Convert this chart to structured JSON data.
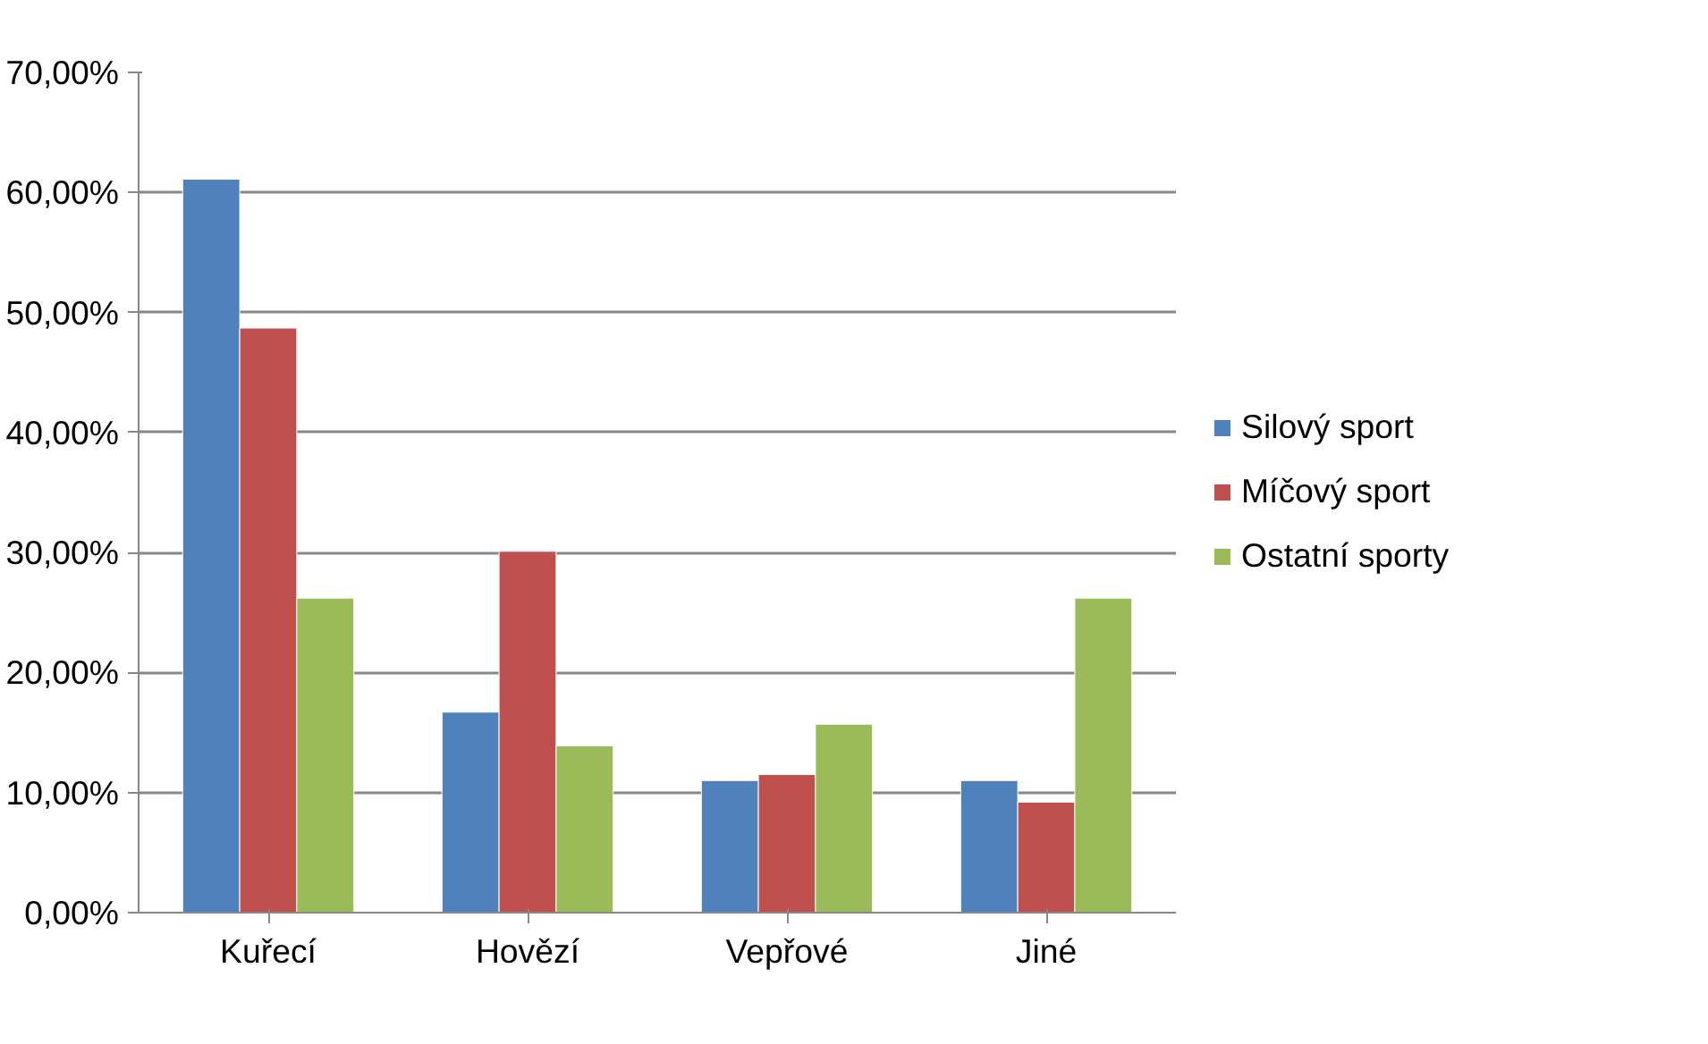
{
  "chart_data": {
    "type": "bar",
    "categories": [
      "Kuřecí",
      "Hovězí",
      "Vepřové",
      "Jiné"
    ],
    "series": [
      {
        "name": "Silový sport",
        "color": "#4f81bd",
        "values": [
          61.1,
          16.7,
          11.0,
          11.0
        ]
      },
      {
        "name": "Míčový sport",
        "color": "#c0504d",
        "values": [
          48.7,
          30.1,
          11.5,
          9.2
        ]
      },
      {
        "name": "Ostatní sporty",
        "color": "#9bbb59",
        "values": [
          26.2,
          13.9,
          15.7,
          26.2
        ]
      }
    ],
    "ylim": [
      0,
      70
    ],
    "yticks": [
      {
        "value": 0,
        "label": "0,00%"
      },
      {
        "value": 10,
        "label": "10,00%"
      },
      {
        "value": 20,
        "label": "20,00%"
      },
      {
        "value": 30,
        "label": "30,00%"
      },
      {
        "value": 40,
        "label": "40,00%"
      },
      {
        "value": 50,
        "label": "50,00%"
      },
      {
        "value": 60,
        "label": "60,00%"
      },
      {
        "value": 70,
        "label": "70,00%"
      }
    ],
    "grid": "y",
    "legend": "right"
  }
}
